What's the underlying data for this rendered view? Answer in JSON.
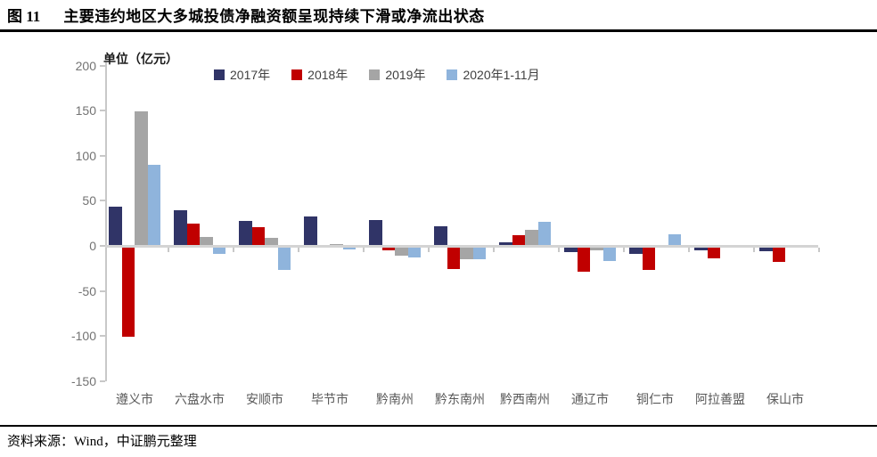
{
  "header": {
    "figure_label": "图 11",
    "title": "主要违约地区大多城投债净融资额呈现持续下滑或净流出状态"
  },
  "chart_data": {
    "type": "bar",
    "title": "主要违约地区大多城投债净融资额呈现持续下滑或净流出状态",
    "unit_label": "单位（亿元）",
    "ylabel": "亿元",
    "categories": [
      "遵义市",
      "六盘水市",
      "安顺市",
      "毕节市",
      "黔南州",
      "黔东南州",
      "黔西南州",
      "通辽市",
      "铜仁市",
      "阿拉善盟",
      "保山市"
    ],
    "series": [
      {
        "name": "2017年",
        "color": "#303467",
        "values": [
          43,
          40,
          28,
          33,
          29,
          22,
          4,
          -6,
          -8,
          -4,
          -5
        ]
      },
      {
        "name": "2018年",
        "color": "#c00000",
        "values": [
          -100,
          25,
          21,
          0,
          -4,
          -25,
          12,
          -28,
          -26,
          -13,
          -17
        ]
      },
      {
        "name": "2019年",
        "color": "#a5a5a5",
        "values": [
          149,
          10,
          9,
          2,
          -10,
          -14,
          18,
          -4,
          0,
          0,
          0
        ]
      },
      {
        "name": "2020年1-11月",
        "color": "#8fb4dc",
        "values": [
          90,
          -8,
          -26,
          -3,
          -12,
          -14,
          27,
          -16,
          13,
          0,
          0
        ]
      }
    ],
    "ylim": [
      -150,
      200
    ],
    "yticks": [
      200,
      150,
      100,
      50,
      0,
      -50,
      -100,
      -150
    ],
    "grid": false,
    "legend_position": "top"
  },
  "footer": {
    "source": "资料来源：Wind，中证鹏元整理"
  }
}
